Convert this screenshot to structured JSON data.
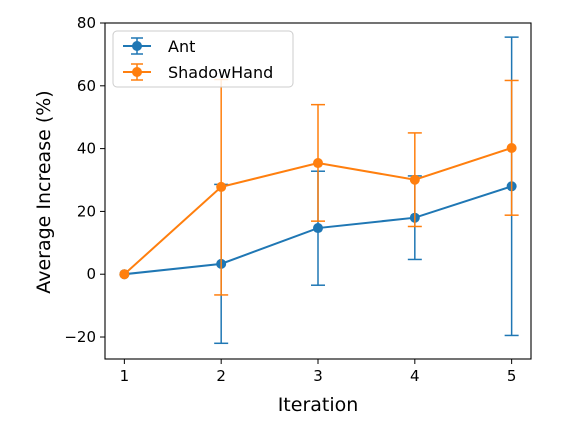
{
  "chart_data": {
    "type": "line",
    "title": "",
    "xlabel": "Iteration",
    "ylabel": "Average Increase (%)",
    "x": [
      1,
      2,
      3,
      4,
      5
    ],
    "xticks": [
      "1",
      "2",
      "3",
      "4",
      "5"
    ],
    "yticks": [
      "−20",
      "0",
      "20",
      "40",
      "60",
      "80"
    ],
    "ytick_values": [
      -20,
      0,
      20,
      40,
      60,
      80
    ],
    "xlim": [
      0.8,
      5.2
    ],
    "ylim": [
      -27,
      80
    ],
    "grid": false,
    "legend_position": "top-left",
    "series": [
      {
        "name": "Ant",
        "color": "#1f77b4",
        "values": [
          0,
          3.3,
          14.7,
          18.0,
          28.0
        ],
        "error_low": [
          0,
          -22.0,
          -3.5,
          4.7,
          -19.5
        ],
        "error_high": [
          0,
          28.6,
          32.8,
          31.3,
          75.5
        ]
      },
      {
        "name": "ShadowHand",
        "color": "#ff7f0e",
        "values": [
          0,
          27.8,
          35.4,
          30.1,
          40.2
        ],
        "error_low": [
          0,
          -6.6,
          16.9,
          15.2,
          18.8
        ],
        "error_high": [
          0,
          62.0,
          54.0,
          45.0,
          61.7
        ]
      }
    ]
  }
}
